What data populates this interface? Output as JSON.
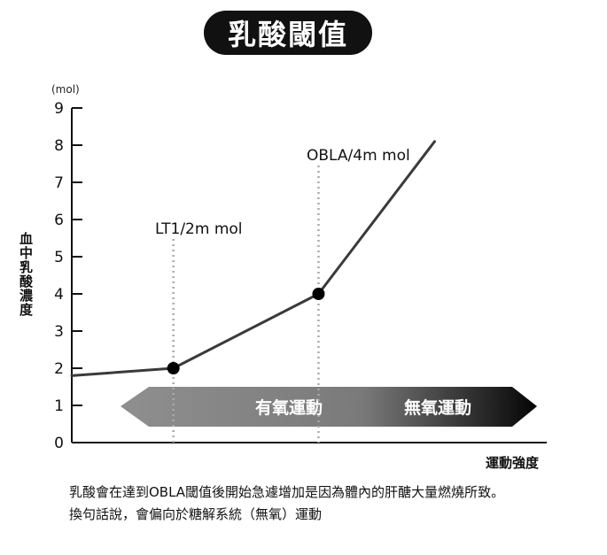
{
  "title": "乳酸閾值",
  "chart_data": {
    "type": "line",
    "unit_label": "(mol)",
    "ylabel": "血中乳酸濃度",
    "xlabel": "運動強度",
    "ylim": [
      0,
      9
    ],
    "yticks": [
      "0",
      "1",
      "2",
      "3",
      "4",
      "5",
      "6",
      "7",
      "8",
      "9"
    ],
    "series": [
      {
        "points": [
          [
            0,
            1.8
          ],
          [
            2.1,
            2.0
          ],
          [
            5.1,
            4.0
          ],
          [
            7.5,
            8.1
          ]
        ]
      }
    ],
    "markers": [
      {
        "x": 2.1,
        "y": 2.0,
        "label": "LT1/2m mol"
      },
      {
        "x": 5.1,
        "y": 4.0,
        "label": "OBLA/4m mol"
      }
    ],
    "zones": [
      {
        "label": "有氧運動",
        "color": "#8a8a8a"
      },
      {
        "label": "無氧運動",
        "color": "#111111"
      }
    ]
  },
  "notes": [
    "乳酸會在達到OBLA閾值後開始急遽增加是因為體內的肝醣大量燃燒所致。",
    "換句話說，會偏向於糖解系統（無氧）運動"
  ]
}
